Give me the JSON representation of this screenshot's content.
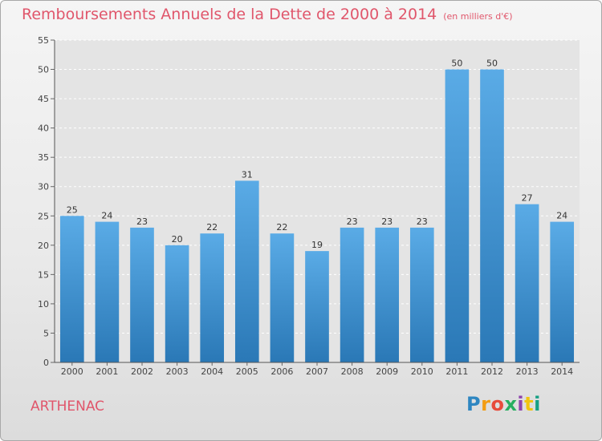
{
  "header": {
    "title": "Remboursements Annuels de la Dette de 2000 à 2014",
    "subtitle": "(en milliers d'€)"
  },
  "commune_name": "ARTHENAC",
  "brand": {
    "letters": [
      "P",
      "r",
      "o",
      "x",
      "i",
      "t",
      "i"
    ],
    "colors": [
      "#2e86c1",
      "#f39c12",
      "#e74c3c",
      "#27ae60",
      "#8e44ad",
      "#f1c40f",
      "#16a085"
    ]
  },
  "chart_data": {
    "type": "bar",
    "title": "Remboursements Annuels de la Dette de 2000 à 2014",
    "subtitle": "(en milliers d'€)",
    "categories": [
      "2000",
      "2001",
      "2002",
      "2003",
      "2004",
      "2005",
      "2006",
      "2007",
      "2008",
      "2009",
      "2010",
      "2011",
      "2012",
      "2013",
      "2014"
    ],
    "values": [
      25,
      24,
      23,
      20,
      22,
      31,
      22,
      19,
      23,
      23,
      23,
      50,
      50,
      27,
      24
    ],
    "value_labels": [
      "25",
      "24",
      "23",
      "20",
      "22",
      "31",
      "22",
      "19",
      "23",
      "23",
      "23",
      "50",
      "50",
      "27",
      "24"
    ],
    "yticks": [
      "0",
      "5",
      "10",
      "15",
      "20",
      "25",
      "30",
      "35",
      "40",
      "45",
      "50",
      "55"
    ],
    "ylim": [
      0,
      55
    ],
    "grid": true,
    "bar_color_top": "#5aabe6",
    "bar_color_bottom": "#2a78b6"
  }
}
